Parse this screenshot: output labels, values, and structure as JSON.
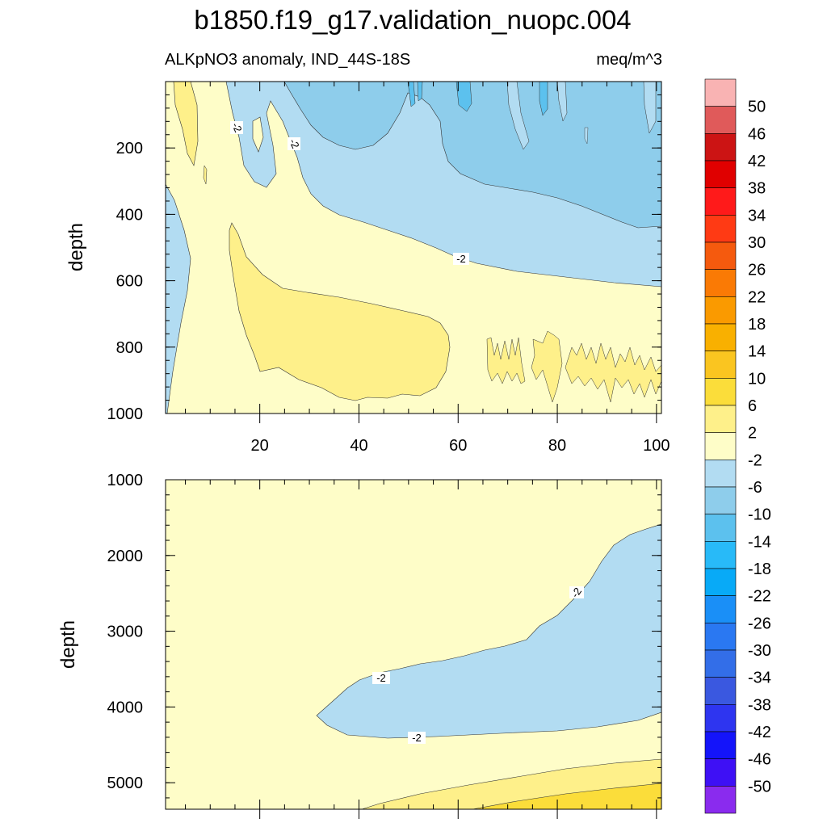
{
  "title": "b1850.f19_g17.validation_nuopc.004",
  "chart_data": {
    "type": "contour",
    "variable_label": "ALKpNO3 anomaly, IND_44S-18S",
    "units": "meq/m^3",
    "x_ticks": [
      20,
      40,
      60,
      80,
      100
    ],
    "x_range": [
      1,
      101
    ],
    "panels": [
      {
        "name": "upper",
        "ylabel": "depth",
        "y_range": [
          0,
          1000
        ],
        "y_ticks": [
          200,
          400,
          600,
          800,
          1000
        ],
        "contour_labels": [
          "-2",
          "-2",
          "-2"
        ],
        "regions": [
          {
            "level": "-2 to 2",
            "desc": "background"
          },
          {
            "level": "-6 to -2",
            "desc": "upper-right tongue"
          },
          {
            "level": "-10 to -6",
            "desc": "upper-right deep blue"
          },
          {
            "level": "-14 to -10",
            "desc": "small pockets near surface"
          },
          {
            "level": "2 to 6",
            "desc": "subsurface lens and deep spikes"
          }
        ]
      },
      {
        "name": "lower",
        "ylabel": "depth",
        "y_range": [
          1000,
          5350
        ],
        "y_ticks": [
          1000,
          2000,
          3000,
          4000,
          5000
        ],
        "contour_labels": [
          "-2",
          "-2",
          "-2"
        ],
        "regions": [
          {
            "level": "-2 to 2",
            "desc": "background"
          },
          {
            "level": "-6 to -2",
            "desc": "mid-depth wedge"
          },
          {
            "level": "2 to 6",
            "desc": "bottom layer"
          },
          {
            "level": "6 to 10",
            "desc": "bottom-right corner"
          }
        ]
      }
    ],
    "colorbar": {
      "labels": [
        "50",
        "46",
        "42",
        "38",
        "34",
        "30",
        "26",
        "22",
        "18",
        "14",
        "10",
        "6",
        "2",
        "-2",
        "-6",
        "-10",
        "-14",
        "-18",
        "-22",
        "-26",
        "-30",
        "-34",
        "-38",
        "-42",
        "-46",
        "-50"
      ],
      "colors": [
        "#F9B3B3",
        "#E05A5A",
        "#CC1414",
        "#E00000",
        "#FF1A1A",
        "#FF3A14",
        "#F55A0E",
        "#FA7A05",
        "#FA9A00",
        "#F9B000",
        "#FAC520",
        "#FBDD3A",
        "#FEF08A",
        "#FEFDC8",
        "#B2DCF2",
        "#8ECDEB",
        "#5CC1EE",
        "#28BAF8",
        "#08AAF7",
        "#1A8FF7",
        "#2A78F2",
        "#336EE8",
        "#3A58E0",
        "#2E35F0",
        "#1414FA",
        "#3E10F5",
        "#8A2BEE"
      ]
    }
  }
}
